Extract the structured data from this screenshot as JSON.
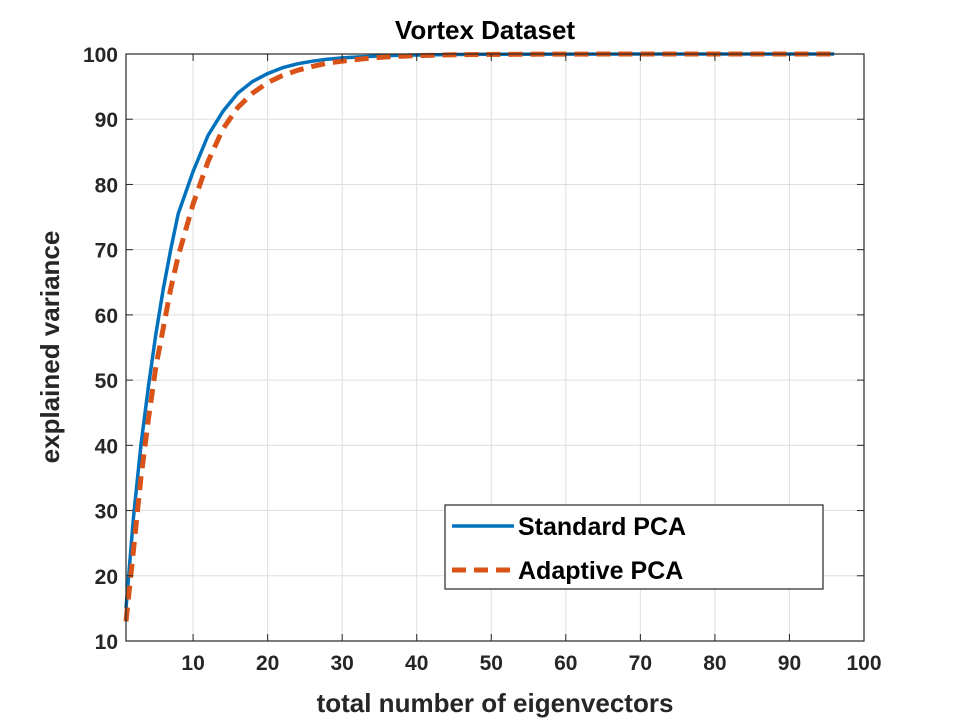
{
  "chart_data": {
    "type": "line",
    "title": "Vortex Dataset",
    "xlabel": "total number of eigenvectors",
    "ylabel": "explained variance",
    "xlim": [
      1,
      100
    ],
    "ylim": [
      10,
      100
    ],
    "xticks": [
      10,
      20,
      30,
      40,
      50,
      60,
      70,
      80,
      90,
      100
    ],
    "yticks": [
      10,
      20,
      30,
      40,
      50,
      60,
      70,
      80,
      90,
      100
    ],
    "grid": true,
    "legend_position": "bottom-right",
    "series": [
      {
        "name": "Standard PCA",
        "color": "#0072BD",
        "style": "solid",
        "x": [
          1,
          2,
          3,
          4,
          5,
          6,
          7,
          8,
          10,
          12,
          14,
          16,
          18,
          20,
          22,
          24,
          26,
          28,
          30,
          33,
          36,
          40,
          45,
          50,
          60,
          70,
          80,
          90,
          96
        ],
        "y": [
          15,
          29,
          40,
          49,
          57,
          64,
          70,
          75.5,
          82,
          87.5,
          91.2,
          94,
          95.8,
          97,
          97.9,
          98.5,
          98.9,
          99.2,
          99.4,
          99.6,
          99.75,
          99.85,
          99.92,
          99.96,
          99.99,
          100,
          100,
          100,
          100
        ]
      },
      {
        "name": "Adaptive PCA",
        "color": "#D95319",
        "style": "dashed",
        "x": [
          1,
          2,
          3,
          4,
          5,
          6,
          7,
          8,
          10,
          12,
          14,
          16,
          18,
          20,
          22,
          24,
          26,
          28,
          30,
          33,
          36,
          40,
          45,
          50,
          60,
          70,
          80,
          90,
          96
        ],
        "y": [
          13,
          24,
          35,
          44,
          52,
          58,
          64,
          69,
          77,
          83.5,
          88.5,
          91.8,
          94,
          95.6,
          96.7,
          97.5,
          98.1,
          98.6,
          98.9,
          99.3,
          99.55,
          99.75,
          99.88,
          99.94,
          99.98,
          100,
          100,
          100,
          100
        ]
      }
    ]
  }
}
